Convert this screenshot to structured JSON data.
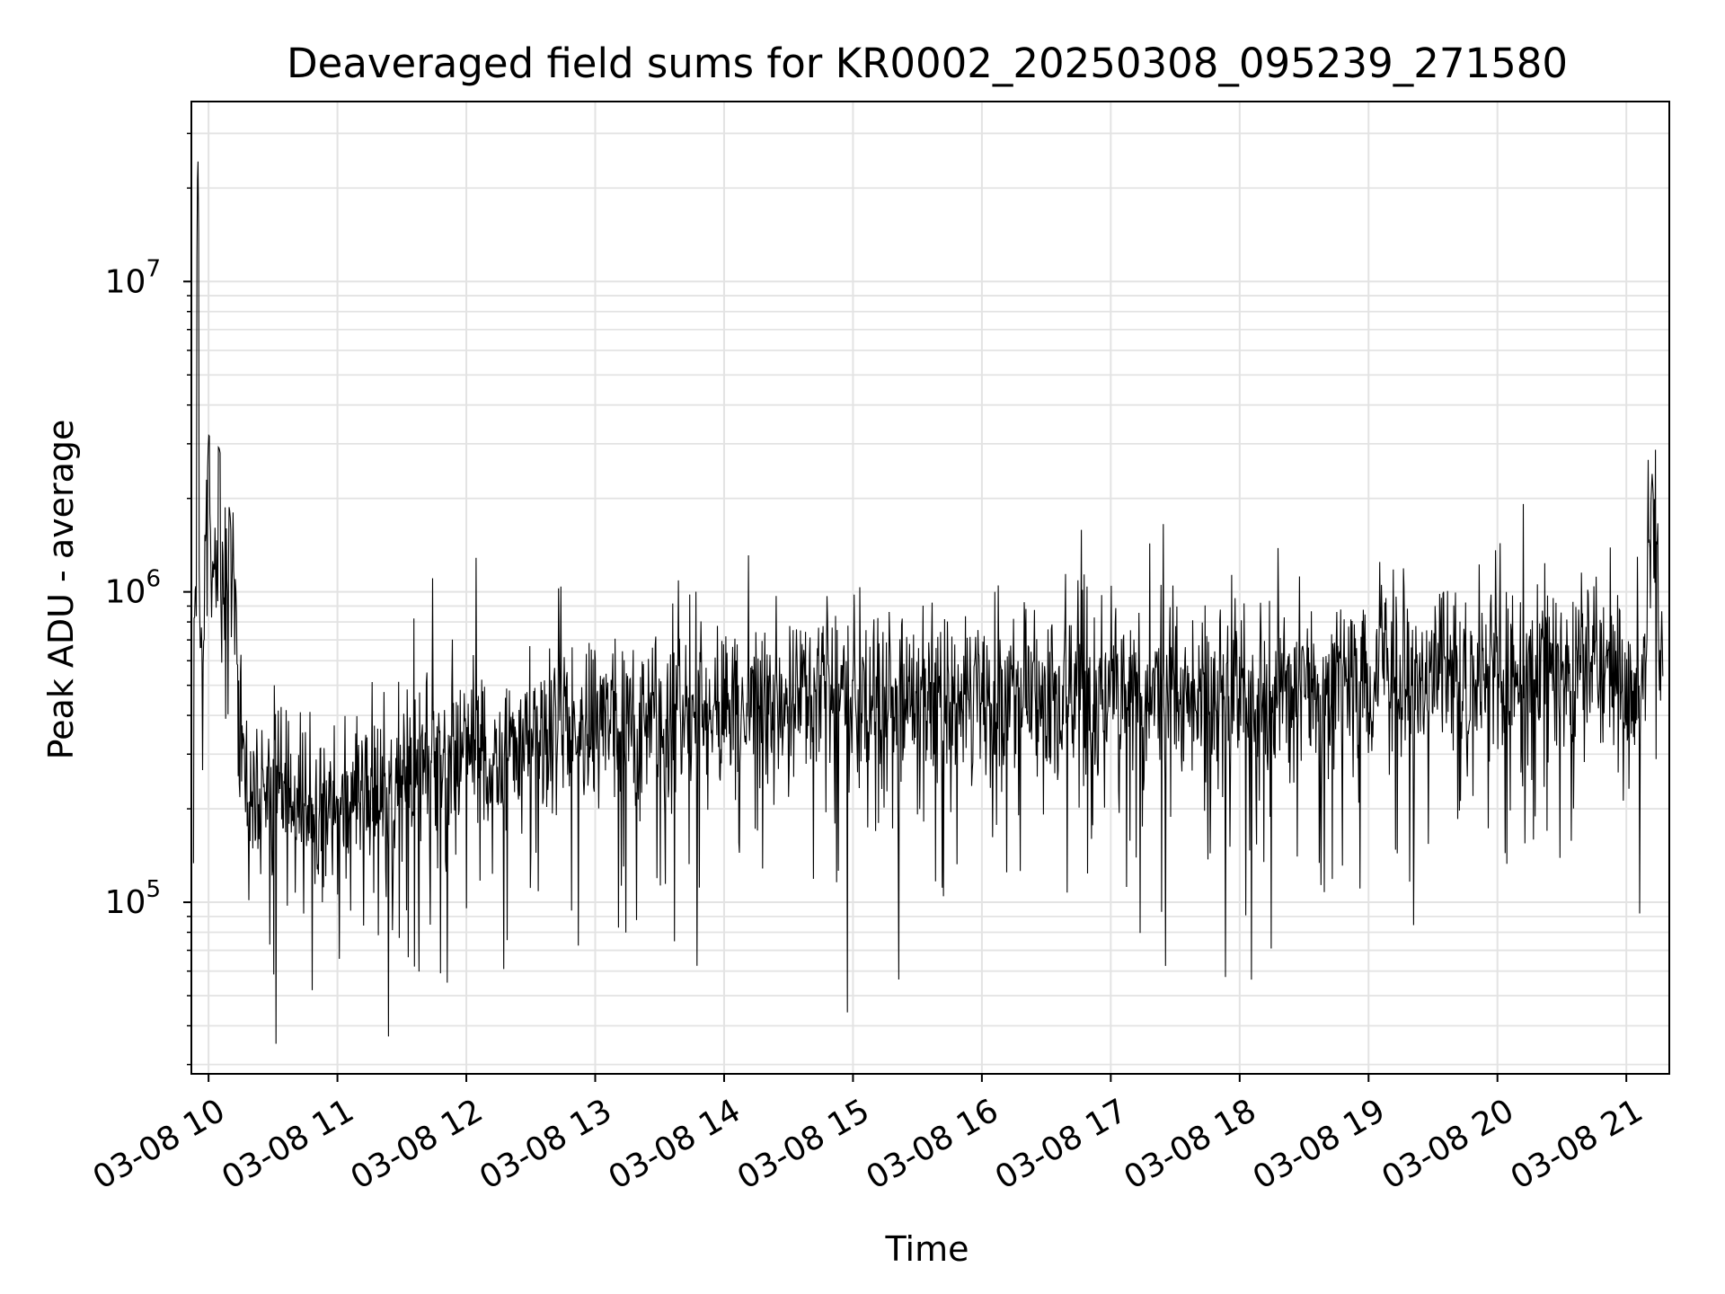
{
  "chart_data": {
    "type": "line",
    "title": "Deaveraged field sums for KR0002_20250308_095239_271580",
    "xlabel": "Time",
    "ylabel": "Peak ADU - average",
    "xscale": "time",
    "yscale": "log",
    "xlim": [
      "2025-03-08 09:52",
      "2025-03-08 21:20"
    ],
    "ylim": [
      28000,
      38000000
    ],
    "x_ticks": [
      "03-08 10",
      "03-08 11",
      "03-08 12",
      "03-08 13",
      "03-08 14",
      "03-08 15",
      "03-08 16",
      "03-08 17",
      "03-08 18",
      "03-08 19",
      "03-08 20",
      "03-08 21"
    ],
    "y_ticks": [
      {
        "label": "10",
        "exp": "5",
        "value": 100000
      },
      {
        "label": "10",
        "exp": "6",
        "value": 1000000
      },
      {
        "label": "10",
        "exp": "7",
        "value": 10000000
      }
    ],
    "grid": true,
    "legend": "none",
    "line_color": "#000000",
    "series": [
      {
        "x": [
          "09:53",
          "09:55",
          "09:57",
          "10:00",
          "10:05",
          "10:10",
          "10:15",
          "10:20",
          "10:25",
          "10:30",
          "10:40",
          "10:50",
          "11:00",
          "11:15",
          "11:30",
          "11:45",
          "12:00",
          "12:15",
          "12:30",
          "12:45",
          "13:00",
          "13:15",
          "13:30",
          "13:45",
          "14:00",
          "14:15",
          "14:30",
          "14:45",
          "15:00",
          "15:15",
          "15:30",
          "15:45",
          "16:00",
          "16:15",
          "16:30",
          "16:45",
          "17:00",
          "17:15",
          "17:30",
          "17:45",
          "18:00",
          "18:15",
          "18:30",
          "18:45",
          "19:00",
          "19:15",
          "19:30",
          "19:45",
          "20:00",
          "20:15",
          "20:30",
          "20:45",
          "20:57",
          "21:02",
          "21:08",
          "21:12",
          "21:17"
        ],
        "values": [
          400000,
          30000000,
          550000,
          3200000,
          2900000,
          1800000,
          300000,
          260000,
          230000,
          240000,
          210000,
          200000,
          220000,
          230000,
          250000,
          280000,
          300000,
          310000,
          340000,
          360000,
          380000,
          390000,
          400000,
          410000,
          420000,
          430000,
          450000,
          460000,
          450000,
          440000,
          430000,
          420000,
          430000,
          440000,
          450000,
          460000,
          470000,
          480000,
          470000,
          460000,
          470000,
          480000,
          500000,
          510000,
          520000,
          530000,
          520000,
          510000,
          520000,
          530000,
          540000,
          550000,
          560000,
          450000,
          470000,
          2400000,
          560000
        ]
      }
    ]
  }
}
